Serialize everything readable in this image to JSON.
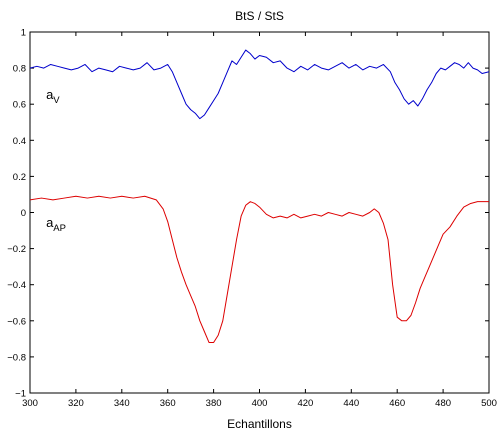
{
  "chart_data": {
    "type": "line",
    "title": "BtS / StS",
    "xlabel": "Echantillons",
    "ylabel": "",
    "xlim": [
      300,
      500
    ],
    "ylim": [
      -1,
      1
    ],
    "xticks": [
      300,
      320,
      340,
      360,
      380,
      400,
      420,
      440,
      460,
      480,
      500
    ],
    "yticks": [
      -1,
      -0.8,
      -0.6,
      -0.4,
      -0.2,
      0,
      0.2,
      0.4,
      0.6,
      0.8,
      1
    ],
    "xtick_labels": [
      "300",
      "320",
      "340",
      "360",
      "380",
      "400",
      "420",
      "440",
      "460",
      "480",
      "500"
    ],
    "ytick_labels": [
      "−1",
      "−0.8",
      "−0.6",
      "−0.4",
      "−0.2",
      "0",
      "0.2",
      "0.4",
      "0.6",
      "0.8",
      "1"
    ],
    "grid": false,
    "annotations": [
      {
        "base": "a",
        "sub": "V",
        "x": 307,
        "y": 0.63
      },
      {
        "base": "a",
        "sub": "AP",
        "x": 307,
        "y": -0.08
      }
    ],
    "series": [
      {
        "color": "#0000cc",
        "x": [
          300,
          303,
          306,
          309,
          312,
          315,
          318,
          321,
          324,
          327,
          330,
          333,
          336,
          339,
          342,
          345,
          348,
          351,
          354,
          357,
          360,
          362,
          364,
          366,
          368,
          370,
          372,
          374,
          376,
          378,
          380,
          382,
          384,
          386,
          388,
          390,
          392,
          394,
          396,
          398,
          400,
          403,
          406,
          409,
          412,
          415,
          418,
          421,
          424,
          427,
          430,
          433,
          436,
          439,
          442,
          445,
          448,
          451,
          454,
          457,
          459,
          461,
          463,
          465,
          467,
          469,
          471,
          473,
          475,
          477,
          479,
          481,
          483,
          485,
          487,
          489,
          491,
          493,
          495,
          497,
          500
        ],
        "y": [
          0.8,
          0.81,
          0.8,
          0.82,
          0.81,
          0.8,
          0.79,
          0.8,
          0.82,
          0.78,
          0.8,
          0.79,
          0.78,
          0.81,
          0.8,
          0.79,
          0.8,
          0.83,
          0.79,
          0.8,
          0.82,
          0.78,
          0.72,
          0.66,
          0.6,
          0.57,
          0.55,
          0.52,
          0.54,
          0.58,
          0.62,
          0.66,
          0.72,
          0.78,
          0.84,
          0.82,
          0.86,
          0.9,
          0.88,
          0.85,
          0.87,
          0.86,
          0.83,
          0.84,
          0.8,
          0.78,
          0.81,
          0.79,
          0.82,
          0.8,
          0.79,
          0.81,
          0.83,
          0.8,
          0.82,
          0.79,
          0.81,
          0.8,
          0.82,
          0.78,
          0.72,
          0.68,
          0.63,
          0.6,
          0.62,
          0.59,
          0.63,
          0.68,
          0.72,
          0.77,
          0.8,
          0.79,
          0.81,
          0.83,
          0.82,
          0.8,
          0.83,
          0.8,
          0.79,
          0.77,
          0.78
        ]
      },
      {
        "color": "#dd0000",
        "x": [
          300,
          305,
          310,
          315,
          320,
          325,
          330,
          335,
          340,
          345,
          350,
          355,
          358,
          360,
          362,
          364,
          366,
          368,
          370,
          372,
          374,
          376,
          378,
          380,
          382,
          384,
          386,
          388,
          390,
          392,
          394,
          396,
          398,
          400,
          403,
          406,
          409,
          412,
          415,
          418,
          421,
          424,
          427,
          430,
          433,
          436,
          439,
          442,
          445,
          448,
          450,
          452,
          454,
          456,
          458,
          460,
          462,
          464,
          466,
          468,
          470,
          472,
          474,
          476,
          478,
          480,
          483,
          486,
          489,
          492,
          495,
          500
        ],
        "y": [
          0.07,
          0.08,
          0.07,
          0.08,
          0.09,
          0.08,
          0.09,
          0.08,
          0.09,
          0.08,
          0.09,
          0.07,
          0.02,
          -0.05,
          -0.15,
          -0.25,
          -0.33,
          -0.4,
          -0.46,
          -0.52,
          -0.6,
          -0.66,
          -0.72,
          -0.72,
          -0.68,
          -0.6,
          -0.45,
          -0.3,
          -0.15,
          -0.02,
          0.04,
          0.06,
          0.05,
          0.03,
          -0.01,
          -0.03,
          -0.02,
          -0.03,
          -0.01,
          -0.03,
          -0.02,
          -0.01,
          -0.02,
          0.0,
          -0.01,
          -0.02,
          0.0,
          -0.01,
          -0.02,
          0.0,
          0.02,
          0.0,
          -0.06,
          -0.15,
          -0.4,
          -0.58,
          -0.6,
          -0.6,
          -0.57,
          -0.5,
          -0.42,
          -0.36,
          -0.3,
          -0.24,
          -0.18,
          -0.12,
          -0.08,
          -0.02,
          0.03,
          0.05,
          0.06,
          0.06
        ]
      }
    ]
  }
}
